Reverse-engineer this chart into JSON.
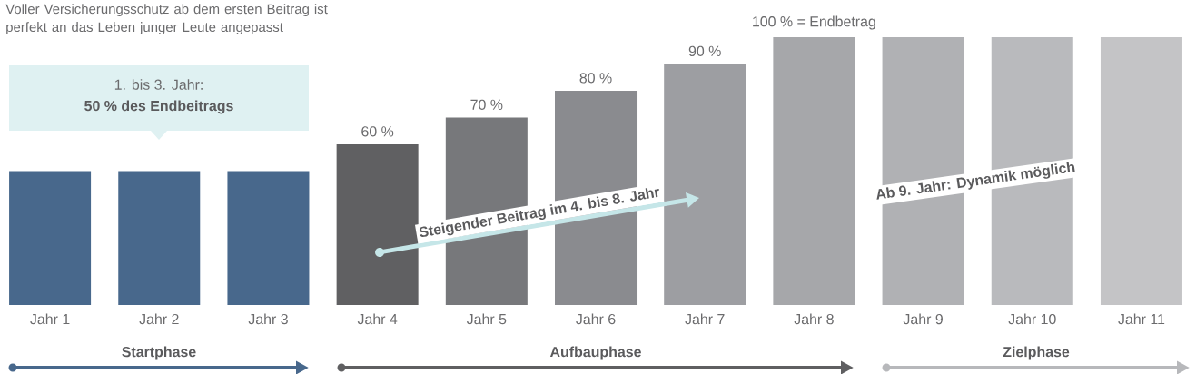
{
  "chart_data": {
    "type": "bar",
    "title": "Voller Versicherungsschutz ab dem ersten Beitrag ist perfekt an das Leben junger Leute angepasst",
    "categories": [
      "Jahr 1",
      "Jahr 2",
      "Jahr 3",
      "Jahr 4",
      "Jahr 5",
      "Jahr 6",
      "Jahr 7",
      "Jahr 8",
      "Jahr 9",
      "Jahr 10",
      "Jahr 11"
    ],
    "values": [
      50,
      50,
      50,
      60,
      70,
      80,
      90,
      100,
      100,
      100,
      100
    ],
    "colors": [
      "#48688c",
      "#48688c",
      "#48688c",
      "#606062",
      "#77787b",
      "#8a8b8f",
      "#9d9ea2",
      "#a6a7aa",
      "#b0b1b4",
      "#b9babd",
      "#c4c4c6"
    ],
    "value_labels": [
      null,
      null,
      null,
      "60 %",
      "70 %",
      "80 %",
      "90 %",
      "100 % = Endbetrag",
      null,
      null,
      null
    ],
    "ylim": [
      0,
      100
    ],
    "tick_labels": "x",
    "annotations": [
      "1. bis 3. Jahr:",
      "50 % des Endbeitrags",
      "Steigender Beitrag im 4. bis 8. Jahr",
      "Ab 9. Jahr: Dynamik möglich",
      "Startphase",
      "Aufbauphase",
      "Zielphase"
    ]
  }
}
